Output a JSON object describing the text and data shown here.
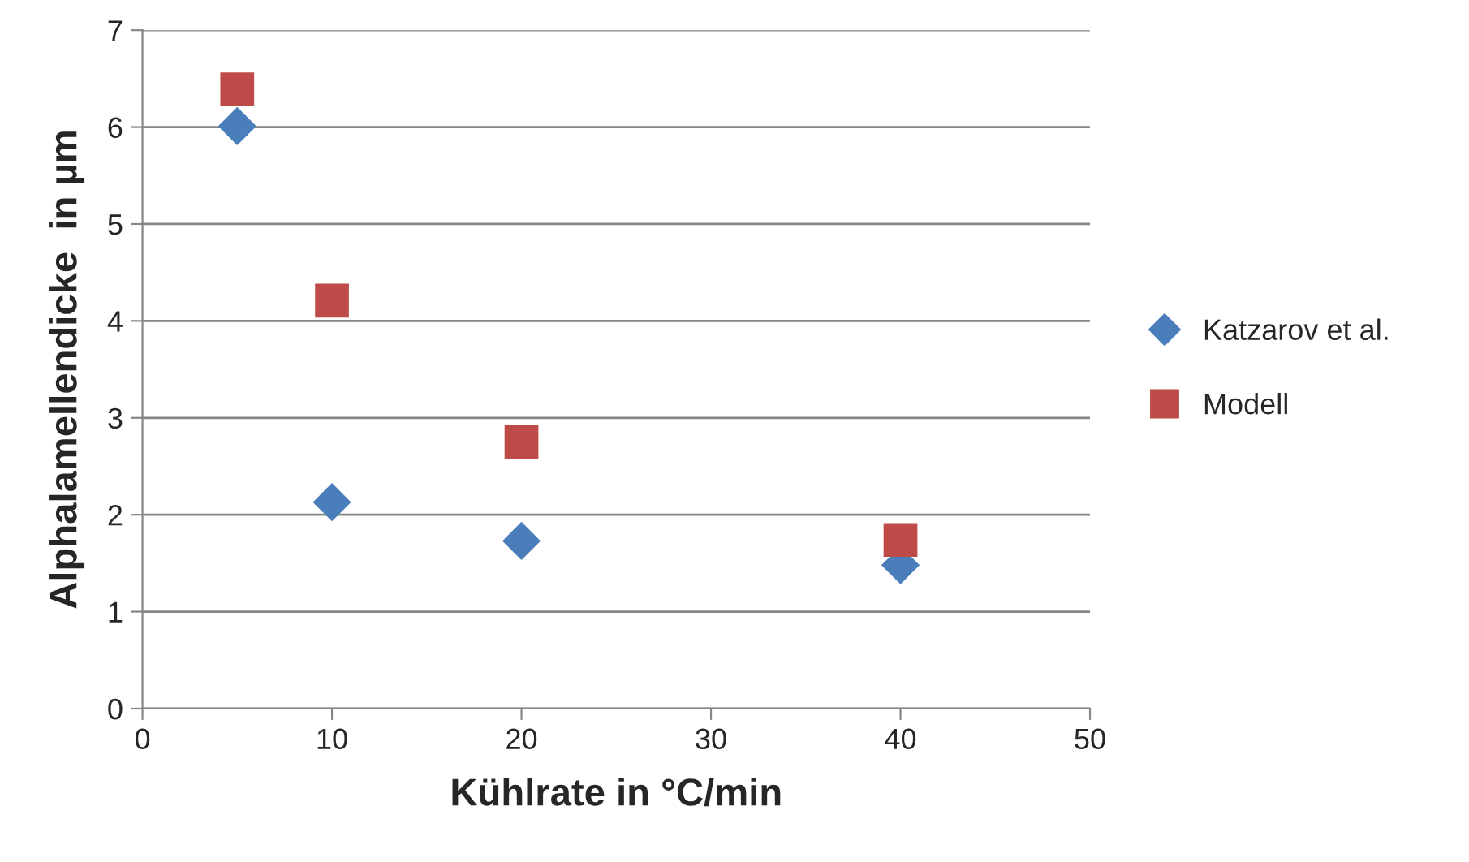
{
  "chart_data": {
    "type": "scatter",
    "xlabel": "Kühlrate in °C/min",
    "ylabel": "Alphalamellendicke  in µm",
    "xlim": [
      0,
      50
    ],
    "xticks": [
      0,
      10,
      20,
      30,
      40,
      50
    ],
    "ylim": [
      0,
      7
    ],
    "yticks": [
      0,
      1,
      2,
      3,
      4,
      5,
      6,
      7
    ],
    "grid": "y",
    "legend": "right",
    "series": [
      {
        "name": "Katzarov et al.",
        "color": "#4a7ebb",
        "marker": "diamond",
        "x": [
          5,
          10,
          20,
          40
        ],
        "values": [
          6.01,
          2.13,
          1.73,
          1.48
        ]
      },
      {
        "name": "Modell",
        "color": "#be4b48",
        "marker": "square",
        "x": [
          5,
          10,
          20,
          40
        ],
        "values": [
          6.39,
          4.21,
          2.75,
          1.74
        ]
      }
    ]
  }
}
